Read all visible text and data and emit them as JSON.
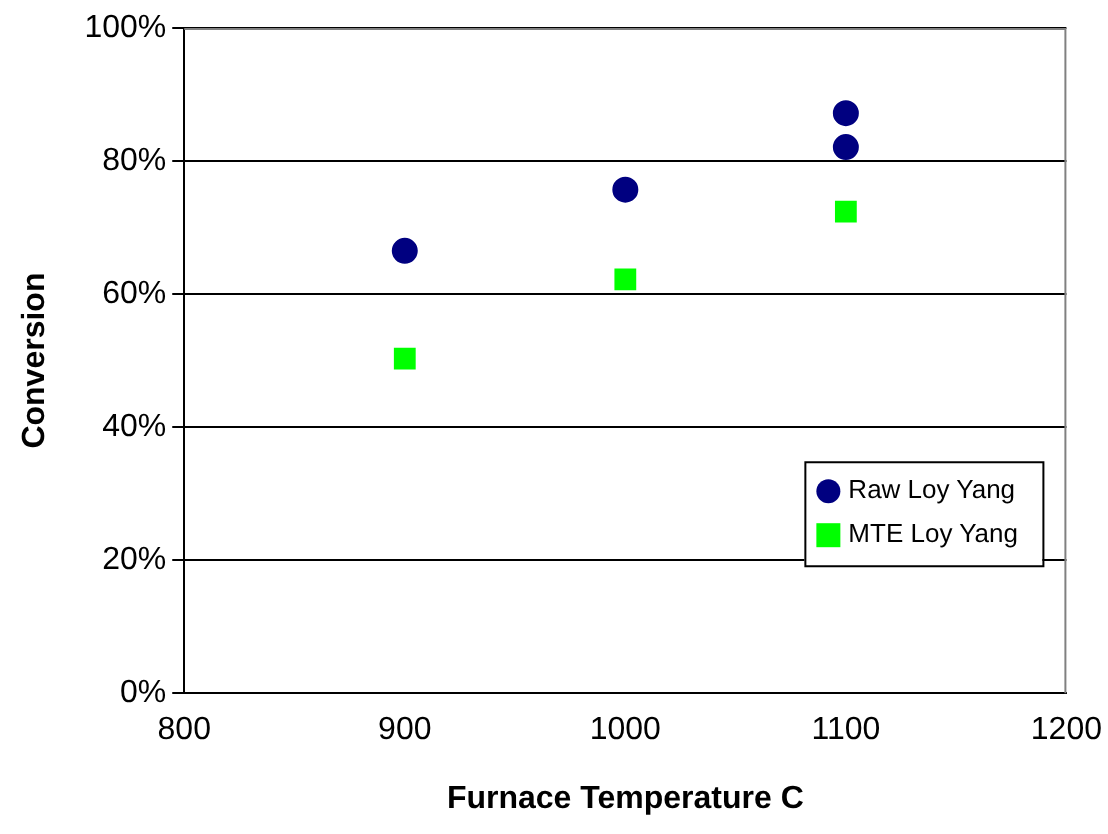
{
  "chart_data": {
    "type": "scatter",
    "xlabel": "Furnace Temperature C",
    "ylabel": "Conversion",
    "series": [
      {
        "name": "Raw Loy Yang",
        "color": "#000080",
        "marker": "circle",
        "x": [
          900,
          1000,
          1100,
          1100
        ],
        "values": [
          66.5,
          75.7,
          87.2,
          82.1
        ]
      },
      {
        "name": "MTE Loy Yang",
        "color": "#00ff00",
        "marker": "square",
        "x": [
          900,
          1000,
          1100
        ],
        "values": [
          50.3,
          62.2,
          72.4
        ]
      }
    ],
    "xlim": [
      800,
      1200
    ],
    "xticks": [
      800,
      900,
      1000,
      1100,
      1200
    ],
    "ylim": [
      0,
      100
    ],
    "yticks": [
      {
        "value": 0,
        "label": "0%"
      },
      {
        "value": 20,
        "label": "20%"
      },
      {
        "value": 40,
        "label": "40%"
      },
      {
        "value": 60,
        "label": "60%"
      },
      {
        "value": 80,
        "label": "80%"
      },
      {
        "value": 100,
        "label": "100%"
      }
    ],
    "grid": "y",
    "legend": "bottom right"
  }
}
